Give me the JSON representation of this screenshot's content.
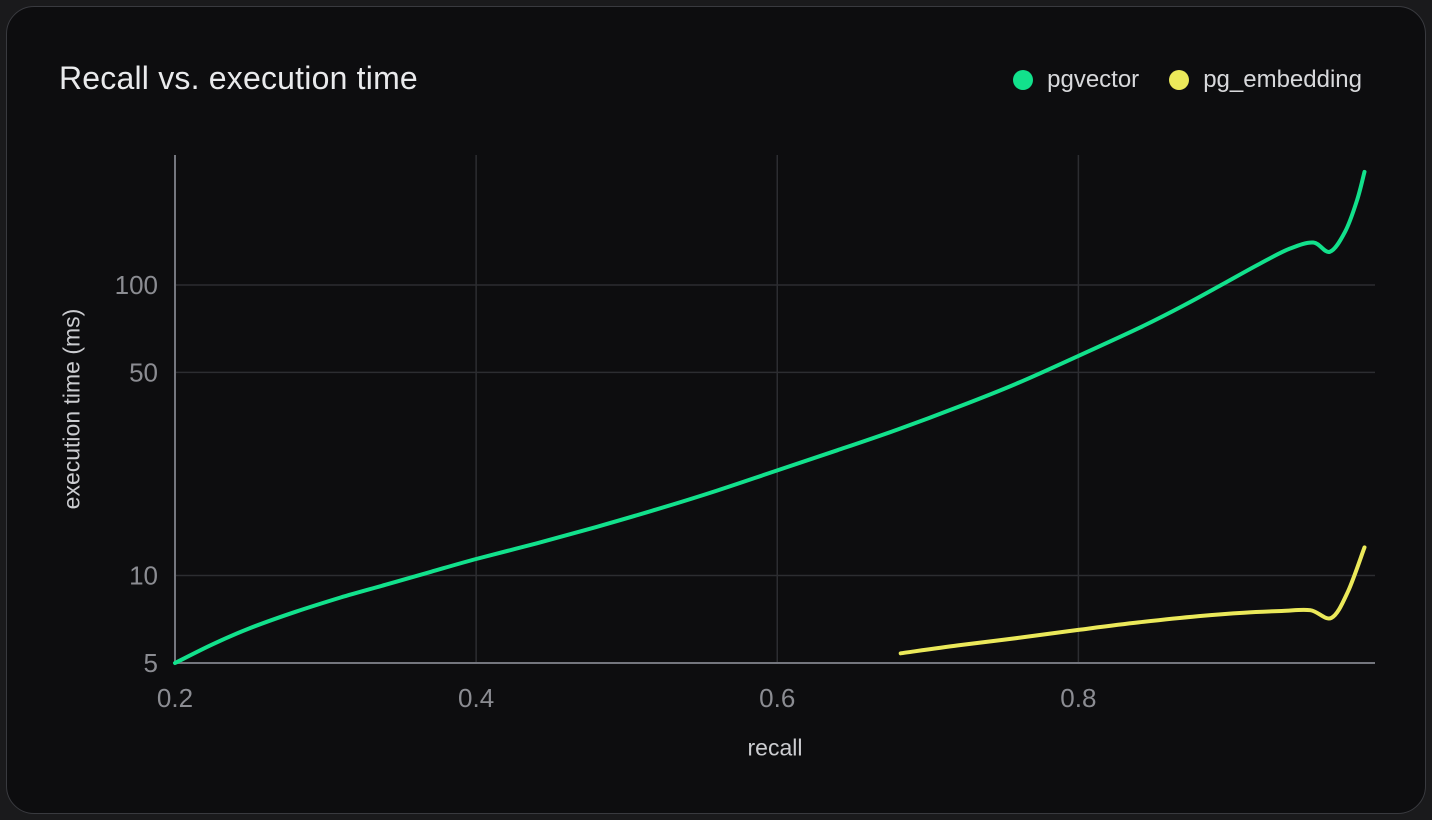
{
  "page": {
    "title": "Recall vs. execution time"
  },
  "chart_data": {
    "type": "line",
    "title": "Recall vs. execution time",
    "xlabel": "recall",
    "ylabel": "execution time (ms)",
    "x_scale": "linear",
    "y_scale": "log",
    "xlim": [
      0.2,
      0.997
    ],
    "ylim": [
      5,
      280
    ],
    "grid": true,
    "legend_position": "top-right",
    "x_ticks": [
      {
        "value": 0.2,
        "label": "0.2",
        "grid": false
      },
      {
        "value": 0.4,
        "label": "0.4",
        "grid": true
      },
      {
        "value": 0.6,
        "label": "0.6",
        "grid": true
      },
      {
        "value": 0.8,
        "label": "0.8",
        "grid": true
      }
    ],
    "y_ticks": [
      {
        "value": 5,
        "label": "5",
        "grid": false
      },
      {
        "value": 10,
        "label": "10",
        "grid": true
      },
      {
        "value": 50,
        "label": "50",
        "grid": true
      },
      {
        "value": 100,
        "label": "100",
        "grid": true
      }
    ],
    "series": [
      {
        "name": "pgvector",
        "color": "#12e18c",
        "points": [
          [
            0.2,
            5.0
          ],
          [
            0.225,
            5.8
          ],
          [
            0.25,
            6.6
          ],
          [
            0.28,
            7.5
          ],
          [
            0.31,
            8.4
          ],
          [
            0.34,
            9.3
          ],
          [
            0.37,
            10.3
          ],
          [
            0.4,
            11.4
          ],
          [
            0.44,
            12.9
          ],
          [
            0.48,
            14.7
          ],
          [
            0.52,
            16.9
          ],
          [
            0.56,
            19.6
          ],
          [
            0.6,
            23.0
          ],
          [
            0.64,
            27.0
          ],
          [
            0.68,
            31.8
          ],
          [
            0.72,
            38.0
          ],
          [
            0.76,
            46.0
          ],
          [
            0.8,
            57.0
          ],
          [
            0.84,
            71.0
          ],
          [
            0.87,
            85.0
          ],
          [
            0.895,
            100.0
          ],
          [
            0.92,
            118.0
          ],
          [
            0.94,
            133.0
          ],
          [
            0.956,
            140.0
          ],
          [
            0.967,
            130.0
          ],
          [
            0.977,
            152.0
          ],
          [
            0.985,
            195.0
          ],
          [
            0.99,
            245.0
          ]
        ]
      },
      {
        "name": "pg_embedding",
        "color": "#ebe95a",
        "points": [
          [
            0.682,
            5.4
          ],
          [
            0.72,
            5.75
          ],
          [
            0.76,
            6.1
          ],
          [
            0.8,
            6.5
          ],
          [
            0.84,
            6.9
          ],
          [
            0.88,
            7.25
          ],
          [
            0.91,
            7.45
          ],
          [
            0.935,
            7.55
          ],
          [
            0.954,
            7.6
          ],
          [
            0.968,
            7.15
          ],
          [
            0.979,
            8.8
          ],
          [
            0.99,
            12.5
          ]
        ]
      }
    ],
    "style": {
      "page_bg": "#1a1a1c",
      "card_bg": "#0d0d0f",
      "card_border": "#393a3f",
      "grid_color": "#2c2d31",
      "axis_color": "#74767e",
      "tick_text_color": "#8b8c92",
      "axis_label_color": "#cbccd0",
      "title_color": "#e9eaec",
      "legend_text_color": "#d8d9dc"
    }
  }
}
